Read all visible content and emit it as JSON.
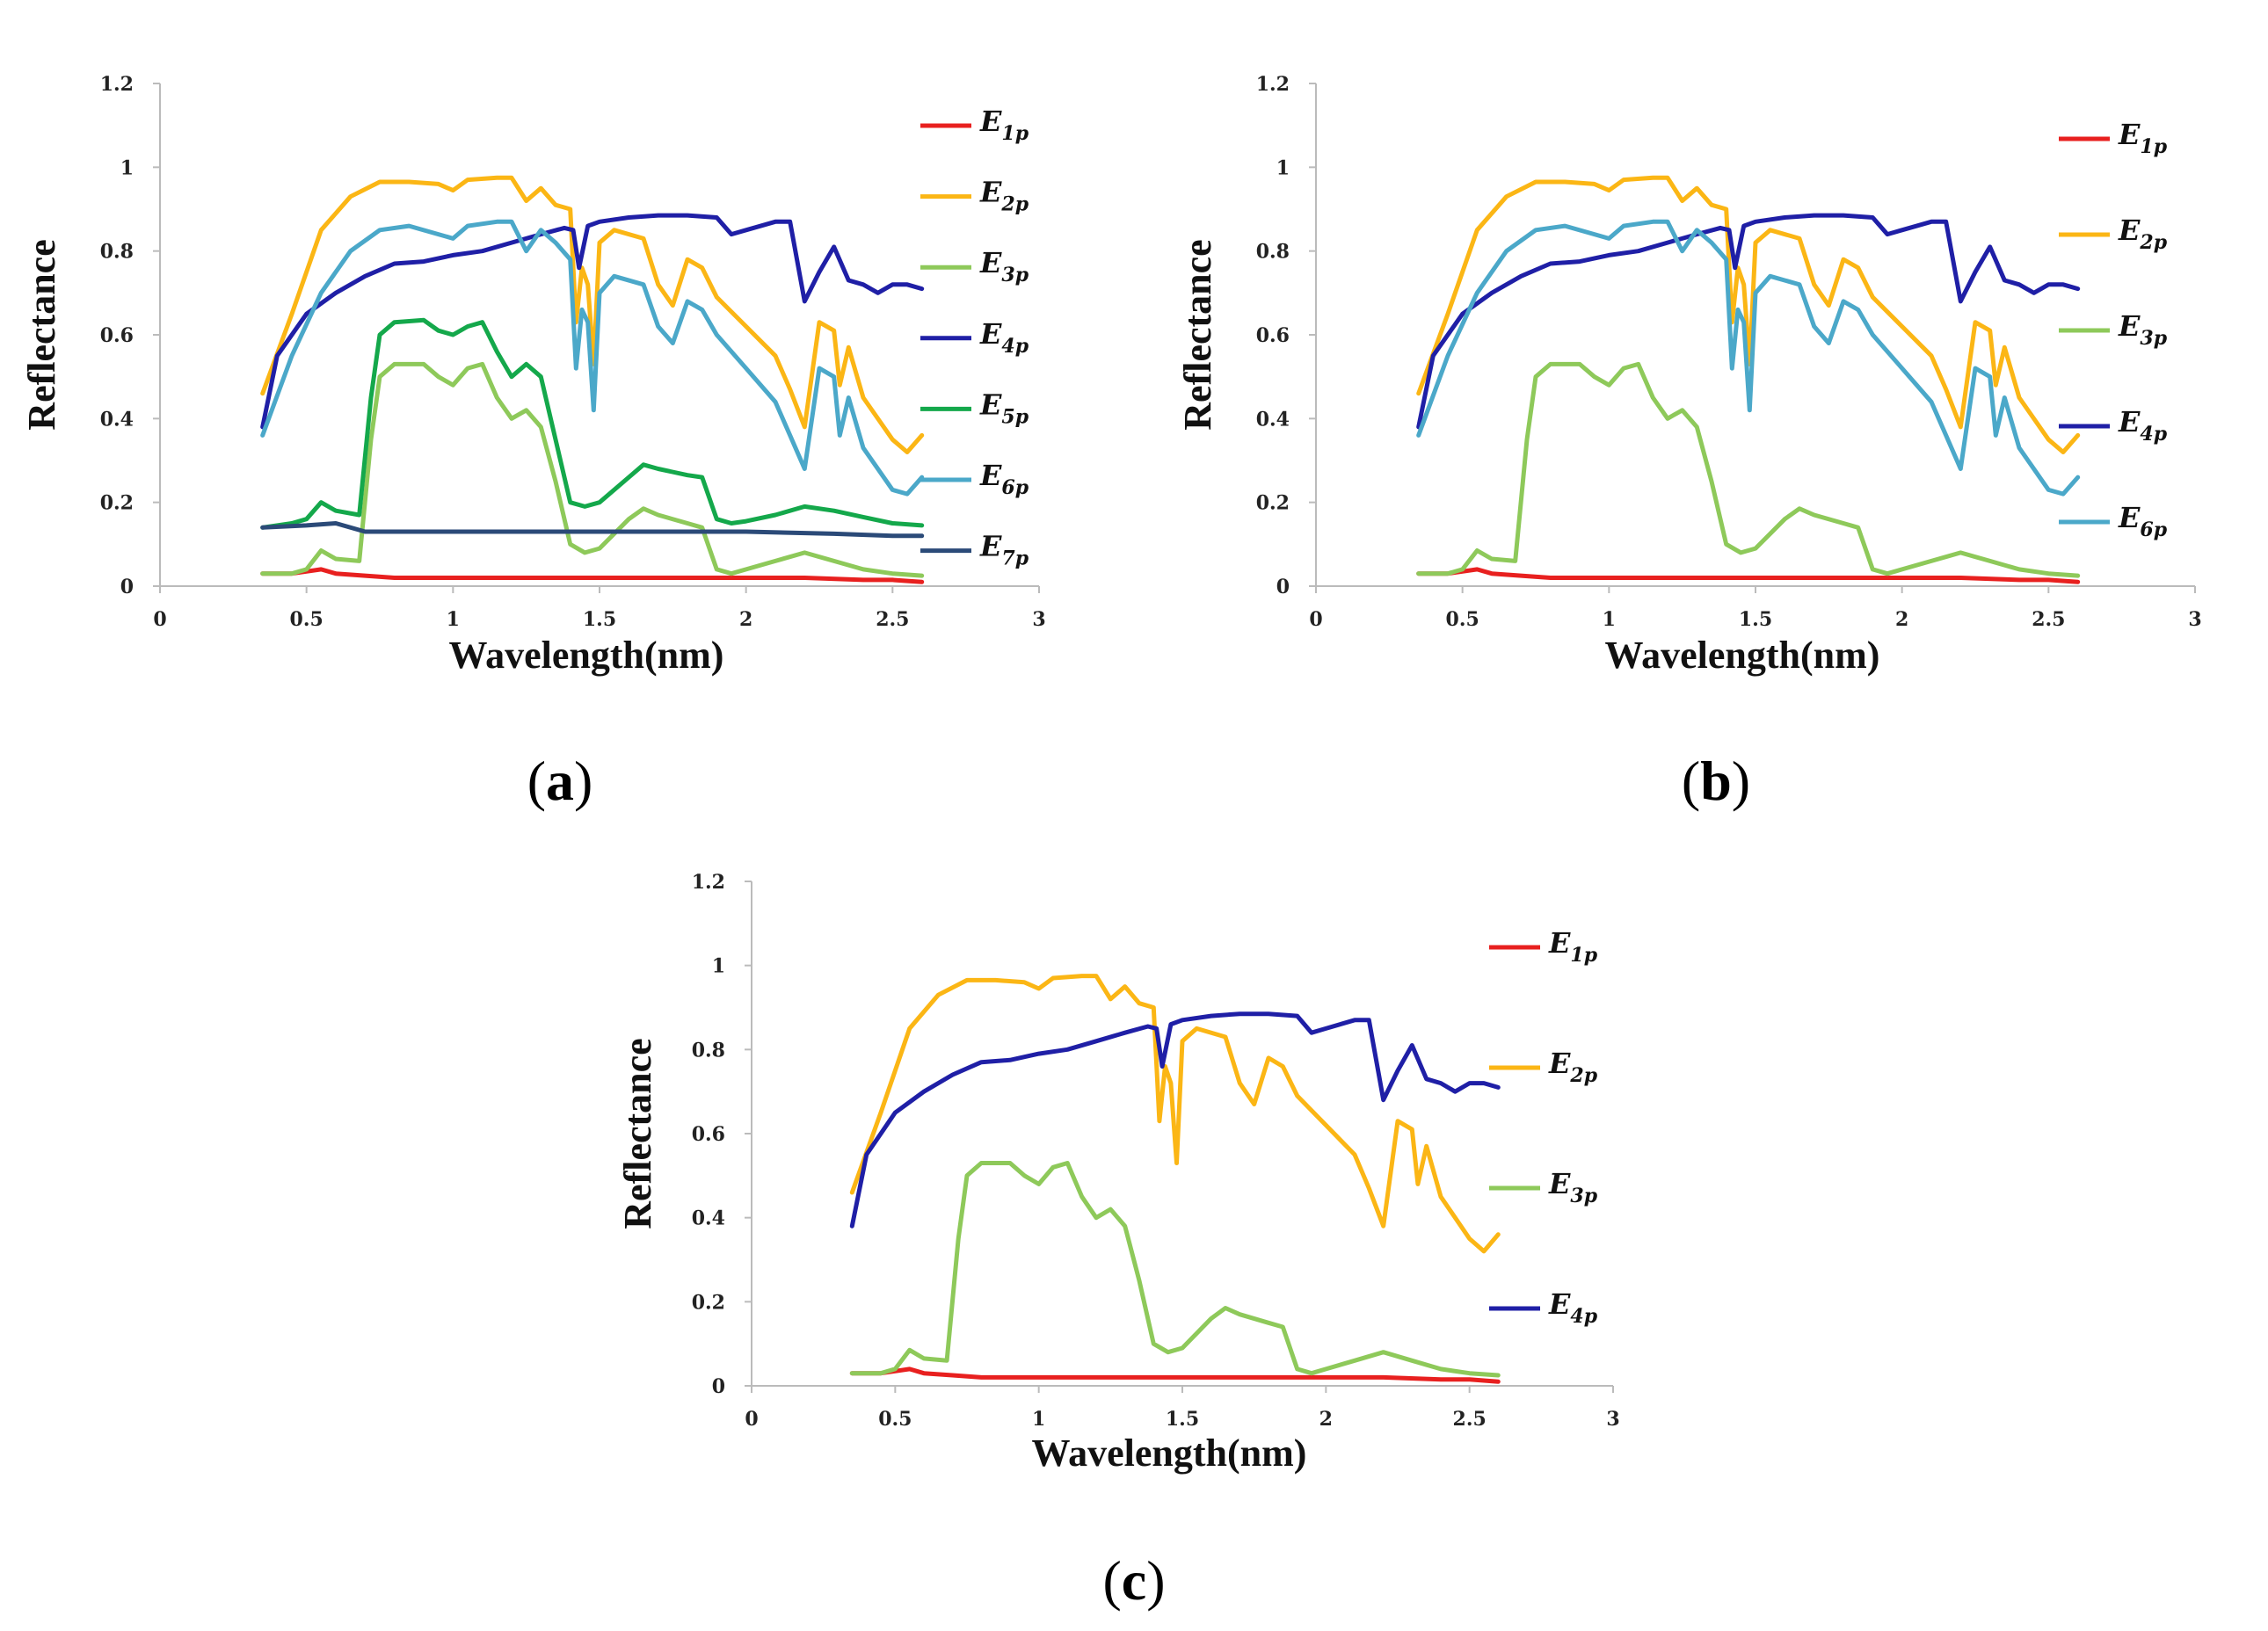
{
  "colors": {
    "E1p": "#e8201f",
    "E2p": "#fbb615",
    "E3p": "#8ec95a",
    "E4p": "#1f1fa6",
    "E5p": "#14a84b",
    "E6p": "#4ba8c9",
    "E7p": "#2b4a78",
    "axis": "#bbbbbb"
  },
  "panel_labels": [
    "a",
    "b",
    "c"
  ],
  "chart_data": [
    {
      "panel": "a",
      "type": "line",
      "xlabel": "Wavelength(nm)",
      "ylabel": "Reflectance",
      "xlim": [
        0,
        3
      ],
      "ylim": [
        0,
        1.2
      ],
      "xticks": [
        "0",
        "0.5",
        "1",
        "1.5",
        "2",
        "2.5",
        "3"
      ],
      "yticks": [
        "0",
        "0.2",
        "0.4",
        "0.6",
        "0.8",
        "1",
        "1.2"
      ],
      "legend_position": "right",
      "series": [
        {
          "name": "E",
          "sub": "1p",
          "key": "E1p",
          "x": [
            0.35,
            0.45,
            0.5,
            0.55,
            0.6,
            0.7,
            0.8,
            1.0,
            1.5,
            2.0,
            2.2,
            2.4,
            2.5,
            2.6
          ],
          "y": [
            0.03,
            0.03,
            0.035,
            0.04,
            0.03,
            0.025,
            0.02,
            0.02,
            0.02,
            0.02,
            0.02,
            0.015,
            0.015,
            0.01
          ]
        },
        {
          "name": "E",
          "sub": "2p",
          "key": "E2p",
          "x": [
            0.35,
            0.45,
            0.55,
            0.65,
            0.75,
            0.85,
            0.95,
            1.0,
            1.05,
            1.15,
            1.2,
            1.25,
            1.3,
            1.35,
            1.4,
            1.42,
            1.44,
            1.46,
            1.48,
            1.5,
            1.55,
            1.65,
            1.7,
            1.75,
            1.8,
            1.85,
            1.9,
            2.0,
            2.1,
            2.15,
            2.2,
            2.25,
            2.3,
            2.32,
            2.35,
            2.4,
            2.5,
            2.55,
            2.6
          ],
          "y": [
            0.46,
            0.65,
            0.85,
            0.93,
            0.965,
            0.965,
            0.96,
            0.945,
            0.97,
            0.975,
            0.975,
            0.92,
            0.95,
            0.91,
            0.9,
            0.63,
            0.76,
            0.72,
            0.53,
            0.82,
            0.85,
            0.83,
            0.72,
            0.67,
            0.78,
            0.76,
            0.69,
            0.62,
            0.55,
            0.47,
            0.38,
            0.63,
            0.61,
            0.48,
            0.57,
            0.45,
            0.35,
            0.32,
            0.36
          ]
        },
        {
          "name": "E",
          "sub": "3p",
          "key": "E3p",
          "x": [
            0.35,
            0.45,
            0.5,
            0.55,
            0.6,
            0.68,
            0.72,
            0.75,
            0.8,
            0.9,
            0.95,
            1.0,
            1.05,
            1.1,
            1.15,
            1.2,
            1.25,
            1.3,
            1.35,
            1.4,
            1.45,
            1.5,
            1.6,
            1.65,
            1.7,
            1.8,
            1.85,
            1.9,
            1.95,
            2.0,
            2.1,
            2.2,
            2.3,
            2.4,
            2.5,
            2.6
          ],
          "y": [
            0.03,
            0.03,
            0.04,
            0.085,
            0.065,
            0.06,
            0.35,
            0.5,
            0.53,
            0.53,
            0.5,
            0.48,
            0.52,
            0.53,
            0.45,
            0.4,
            0.42,
            0.38,
            0.25,
            0.1,
            0.08,
            0.09,
            0.16,
            0.185,
            0.17,
            0.15,
            0.14,
            0.04,
            0.03,
            0.04,
            0.06,
            0.08,
            0.06,
            0.04,
            0.03,
            0.025
          ]
        },
        {
          "name": "E",
          "sub": "4p",
          "key": "E4p",
          "x": [
            0.35,
            0.4,
            0.5,
            0.6,
            0.7,
            0.8,
            0.9,
            1.0,
            1.1,
            1.2,
            1.3,
            1.38,
            1.41,
            1.43,
            1.46,
            1.5,
            1.6,
            1.7,
            1.8,
            1.9,
            1.95,
            2.0,
            2.1,
            2.15,
            2.2,
            2.25,
            2.3,
            2.35,
            2.4,
            2.45,
            2.5,
            2.55,
            2.6
          ],
          "y": [
            0.38,
            0.55,
            0.65,
            0.7,
            0.74,
            0.77,
            0.775,
            0.79,
            0.8,
            0.82,
            0.84,
            0.855,
            0.85,
            0.76,
            0.86,
            0.87,
            0.88,
            0.885,
            0.885,
            0.88,
            0.84,
            0.85,
            0.87,
            0.87,
            0.68,
            0.75,
            0.81,
            0.73,
            0.72,
            0.7,
            0.72,
            0.72,
            0.71
          ]
        },
        {
          "name": "E",
          "sub": "5p",
          "key": "E5p",
          "x": [
            0.35,
            0.45,
            0.5,
            0.55,
            0.6,
            0.68,
            0.72,
            0.75,
            0.8,
            0.9,
            0.95,
            1.0,
            1.05,
            1.1,
            1.15,
            1.2,
            1.25,
            1.3,
            1.35,
            1.4,
            1.45,
            1.5,
            1.6,
            1.65,
            1.7,
            1.8,
            1.85,
            1.9,
            1.95,
            2.0,
            2.1,
            2.2,
            2.3,
            2.4,
            2.5,
            2.6
          ],
          "y": [
            0.14,
            0.15,
            0.16,
            0.2,
            0.18,
            0.17,
            0.45,
            0.6,
            0.63,
            0.635,
            0.61,
            0.6,
            0.62,
            0.63,
            0.56,
            0.5,
            0.53,
            0.5,
            0.35,
            0.2,
            0.19,
            0.2,
            0.26,
            0.29,
            0.28,
            0.265,
            0.26,
            0.16,
            0.15,
            0.155,
            0.17,
            0.19,
            0.18,
            0.165,
            0.15,
            0.145
          ]
        },
        {
          "name": "E",
          "sub": "6p",
          "key": "E6p",
          "x": [
            0.35,
            0.45,
            0.55,
            0.65,
            0.75,
            0.85,
            0.95,
            1.0,
            1.05,
            1.15,
            1.2,
            1.25,
            1.3,
            1.35,
            1.4,
            1.42,
            1.44,
            1.46,
            1.48,
            1.5,
            1.55,
            1.65,
            1.7,
            1.75,
            1.8,
            1.85,
            1.9,
            2.0,
            2.1,
            2.15,
            2.2,
            2.25,
            2.3,
            2.32,
            2.35,
            2.4,
            2.5,
            2.55,
            2.6
          ],
          "y": [
            0.36,
            0.55,
            0.7,
            0.8,
            0.85,
            0.86,
            0.84,
            0.83,
            0.86,
            0.87,
            0.87,
            0.8,
            0.85,
            0.82,
            0.78,
            0.52,
            0.66,
            0.63,
            0.42,
            0.7,
            0.74,
            0.72,
            0.62,
            0.58,
            0.68,
            0.66,
            0.6,
            0.52,
            0.44,
            0.36,
            0.28,
            0.52,
            0.5,
            0.36,
            0.45,
            0.33,
            0.23,
            0.22,
            0.26
          ]
        },
        {
          "name": "E",
          "sub": "7p",
          "key": "E7p",
          "x": [
            0.35,
            0.5,
            0.6,
            0.7,
            1.0,
            1.5,
            2.0,
            2.3,
            2.5,
            2.6
          ],
          "y": [
            0.14,
            0.145,
            0.15,
            0.13,
            0.13,
            0.13,
            0.13,
            0.125,
            0.12,
            0.12
          ]
        }
      ]
    },
    {
      "panel": "b",
      "type": "line",
      "xlabel": "Wavelength(nm)",
      "ylabel": "Reflectance",
      "xlim": [
        0,
        3
      ],
      "ylim": [
        0,
        1.2
      ],
      "xticks": [
        "0",
        "0.5",
        "1",
        "1.5",
        "2",
        "2.5",
        "3"
      ],
      "yticks": [
        "0",
        "0.2",
        "0.4",
        "0.6",
        "0.8",
        "1",
        "1.2"
      ],
      "legend_position": "right",
      "series_keys": [
        "E1p",
        "E2p",
        "E3p",
        "E4p",
        "E6p"
      ]
    },
    {
      "panel": "c",
      "type": "line",
      "xlabel": "Wavelength(nm)",
      "ylabel": "Reflectance",
      "xlim": [
        0,
        3
      ],
      "ylim": [
        0,
        1.2
      ],
      "xticks": [
        "0",
        "0.5",
        "1",
        "1.5",
        "2",
        "2.5",
        "3"
      ],
      "yticks": [
        "0",
        "0.2",
        "0.4",
        "0.6",
        "0.8",
        "1",
        "1.2"
      ],
      "legend_position": "right",
      "series_keys": [
        "E1p",
        "E2p",
        "E3p",
        "E4p"
      ]
    }
  ]
}
